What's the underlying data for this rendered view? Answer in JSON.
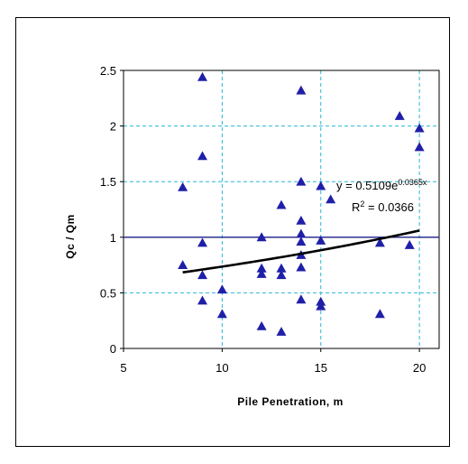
{
  "chart_data": {
    "type": "scatter",
    "xlabel": "Pile Penetration, m",
    "ylabel": "Qc / Qm",
    "xlim": [
      5,
      21
    ],
    "ylim": [
      0,
      2.5
    ],
    "x_ticks": [
      "5",
      "10",
      "15",
      "20"
    ],
    "y_ticks": [
      "0",
      "0.5",
      "1",
      "1.5",
      "2",
      "2.5"
    ],
    "grid": "dashed",
    "legend": "none",
    "marker_color": "#1f1fa8",
    "trend_color": "#000000",
    "reference_line": {
      "y": 1,
      "color": "#1c1c8a"
    },
    "series": [
      {
        "marker": "triangle",
        "points": [
          [
            8,
            1.45
          ],
          [
            8,
            0.75
          ],
          [
            9,
            2.44
          ],
          [
            9,
            1.73
          ],
          [
            9,
            0.95
          ],
          [
            9,
            0.66
          ],
          [
            9,
            0.43
          ],
          [
            10,
            0.53
          ],
          [
            10,
            0.31
          ],
          [
            12,
            1.0
          ],
          [
            12,
            0.72
          ],
          [
            12,
            0.67
          ],
          [
            12,
            0.2
          ],
          [
            13,
            1.29
          ],
          [
            13,
            0.72
          ],
          [
            13,
            0.66
          ],
          [
            13,
            0.15
          ],
          [
            14,
            2.32
          ],
          [
            14,
            1.5
          ],
          [
            14,
            1.15
          ],
          [
            14,
            1.03
          ],
          [
            14,
            0.96
          ],
          [
            14,
            0.84
          ],
          [
            14,
            0.73
          ],
          [
            14,
            0.44
          ],
          [
            15,
            1.46
          ],
          [
            15,
            0.97
          ],
          [
            15,
            0.42
          ],
          [
            15,
            0.38
          ],
          [
            15.5,
            1.34
          ],
          [
            18,
            0.95
          ],
          [
            18,
            0.31
          ],
          [
            19,
            2.09
          ],
          [
            19.5,
            0.93
          ],
          [
            20,
            1.98
          ],
          [
            20,
            1.81
          ]
        ]
      }
    ],
    "trendline": {
      "type": "exponential",
      "a": 0.5109,
      "b": 0.0365,
      "x_from": 8,
      "x_to": 20
    },
    "annotation": {
      "equation_main": "y = 0.5109e",
      "equation_exp": "0.0365x",
      "r2_label": "R",
      "r2_sup": "2",
      "r2_value": " = 0.0366"
    }
  }
}
